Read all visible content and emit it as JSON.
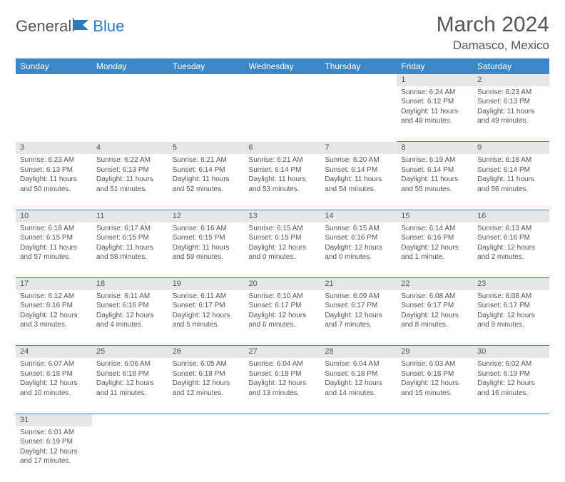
{
  "logo": {
    "word1": "General",
    "word2": "Blue"
  },
  "title": "March 2024",
  "location": "Damasco, Mexico",
  "colors": {
    "header_bg": "#3b87c8",
    "header_text": "#ffffff",
    "daynum_bg": "#e6e6e6",
    "text": "#555555",
    "rule": "#3b87c8"
  },
  "weekdays": [
    "Sunday",
    "Monday",
    "Tuesday",
    "Wednesday",
    "Thursday",
    "Friday",
    "Saturday"
  ],
  "weeks": [
    {
      "nums": [
        "",
        "",
        "",
        "",
        "",
        "1",
        "2"
      ],
      "cells": [
        {
          "sunrise": "",
          "sunset": "",
          "daylight": ""
        },
        {
          "sunrise": "",
          "sunset": "",
          "daylight": ""
        },
        {
          "sunrise": "",
          "sunset": "",
          "daylight": ""
        },
        {
          "sunrise": "",
          "sunset": "",
          "daylight": ""
        },
        {
          "sunrise": "",
          "sunset": "",
          "daylight": ""
        },
        {
          "sunrise": "Sunrise: 6:24 AM",
          "sunset": "Sunset: 6:12 PM",
          "daylight": "Daylight: 11 hours and 48 minutes."
        },
        {
          "sunrise": "Sunrise: 6:23 AM",
          "sunset": "Sunset: 6:13 PM",
          "daylight": "Daylight: 11 hours and 49 minutes."
        }
      ]
    },
    {
      "nums": [
        "3",
        "4",
        "5",
        "6",
        "7",
        "8",
        "9"
      ],
      "cells": [
        {
          "sunrise": "Sunrise: 6:23 AM",
          "sunset": "Sunset: 6:13 PM",
          "daylight": "Daylight: 11 hours and 50 minutes."
        },
        {
          "sunrise": "Sunrise: 6:22 AM",
          "sunset": "Sunset: 6:13 PM",
          "daylight": "Daylight: 11 hours and 51 minutes."
        },
        {
          "sunrise": "Sunrise: 6:21 AM",
          "sunset": "Sunset: 6:14 PM",
          "daylight": "Daylight: 11 hours and 52 minutes."
        },
        {
          "sunrise": "Sunrise: 6:21 AM",
          "sunset": "Sunset: 6:14 PM",
          "daylight": "Daylight: 11 hours and 53 minutes."
        },
        {
          "sunrise": "Sunrise: 6:20 AM",
          "sunset": "Sunset: 6:14 PM",
          "daylight": "Daylight: 11 hours and 54 minutes."
        },
        {
          "sunrise": "Sunrise: 6:19 AM",
          "sunset": "Sunset: 6:14 PM",
          "daylight": "Daylight: 11 hours and 55 minutes."
        },
        {
          "sunrise": "Sunrise: 6:18 AM",
          "sunset": "Sunset: 6:14 PM",
          "daylight": "Daylight: 11 hours and 56 minutes."
        }
      ]
    },
    {
      "nums": [
        "10",
        "11",
        "12",
        "13",
        "14",
        "15",
        "16"
      ],
      "cells": [
        {
          "sunrise": "Sunrise: 6:18 AM",
          "sunset": "Sunset: 6:15 PM",
          "daylight": "Daylight: 11 hours and 57 minutes."
        },
        {
          "sunrise": "Sunrise: 6:17 AM",
          "sunset": "Sunset: 6:15 PM",
          "daylight": "Daylight: 11 hours and 58 minutes."
        },
        {
          "sunrise": "Sunrise: 6:16 AM",
          "sunset": "Sunset: 6:15 PM",
          "daylight": "Daylight: 11 hours and 59 minutes."
        },
        {
          "sunrise": "Sunrise: 6:15 AM",
          "sunset": "Sunset: 6:15 PM",
          "daylight": "Daylight: 12 hours and 0 minutes."
        },
        {
          "sunrise": "Sunrise: 6:15 AM",
          "sunset": "Sunset: 6:16 PM",
          "daylight": "Daylight: 12 hours and 0 minutes."
        },
        {
          "sunrise": "Sunrise: 6:14 AM",
          "sunset": "Sunset: 6:16 PM",
          "daylight": "Daylight: 12 hours and 1 minute."
        },
        {
          "sunrise": "Sunrise: 6:13 AM",
          "sunset": "Sunset: 6:16 PM",
          "daylight": "Daylight: 12 hours and 2 minutes."
        }
      ]
    },
    {
      "nums": [
        "17",
        "18",
        "19",
        "20",
        "21",
        "22",
        "23"
      ],
      "cells": [
        {
          "sunrise": "Sunrise: 6:12 AM",
          "sunset": "Sunset: 6:16 PM",
          "daylight": "Daylight: 12 hours and 3 minutes."
        },
        {
          "sunrise": "Sunrise: 6:11 AM",
          "sunset": "Sunset: 6:16 PM",
          "daylight": "Daylight: 12 hours and 4 minutes."
        },
        {
          "sunrise": "Sunrise: 6:11 AM",
          "sunset": "Sunset: 6:17 PM",
          "daylight": "Daylight: 12 hours and 5 minutes."
        },
        {
          "sunrise": "Sunrise: 6:10 AM",
          "sunset": "Sunset: 6:17 PM",
          "daylight": "Daylight: 12 hours and 6 minutes."
        },
        {
          "sunrise": "Sunrise: 6:09 AM",
          "sunset": "Sunset: 6:17 PM",
          "daylight": "Daylight: 12 hours and 7 minutes."
        },
        {
          "sunrise": "Sunrise: 6:08 AM",
          "sunset": "Sunset: 6:17 PM",
          "daylight": "Daylight: 12 hours and 8 minutes."
        },
        {
          "sunrise": "Sunrise: 6:08 AM",
          "sunset": "Sunset: 6:17 PM",
          "daylight": "Daylight: 12 hours and 9 minutes."
        }
      ]
    },
    {
      "nums": [
        "24",
        "25",
        "26",
        "27",
        "28",
        "29",
        "30"
      ],
      "cells": [
        {
          "sunrise": "Sunrise: 6:07 AM",
          "sunset": "Sunset: 6:18 PM",
          "daylight": "Daylight: 12 hours and 10 minutes."
        },
        {
          "sunrise": "Sunrise: 6:06 AM",
          "sunset": "Sunset: 6:18 PM",
          "daylight": "Daylight: 12 hours and 11 minutes."
        },
        {
          "sunrise": "Sunrise: 6:05 AM",
          "sunset": "Sunset: 6:18 PM",
          "daylight": "Daylight: 12 hours and 12 minutes."
        },
        {
          "sunrise": "Sunrise: 6:04 AM",
          "sunset": "Sunset: 6:18 PM",
          "daylight": "Daylight: 12 hours and 13 minutes."
        },
        {
          "sunrise": "Sunrise: 6:04 AM",
          "sunset": "Sunset: 6:18 PM",
          "daylight": "Daylight: 12 hours and 14 minutes."
        },
        {
          "sunrise": "Sunrise: 6:03 AM",
          "sunset": "Sunset: 6:18 PM",
          "daylight": "Daylight: 12 hours and 15 minutes."
        },
        {
          "sunrise": "Sunrise: 6:02 AM",
          "sunset": "Sunset: 6:19 PM",
          "daylight": "Daylight: 12 hours and 16 minutes."
        }
      ]
    },
    {
      "nums": [
        "31",
        "",
        "",
        "",
        "",
        "",
        ""
      ],
      "cells": [
        {
          "sunrise": "Sunrise: 6:01 AM",
          "sunset": "Sunset: 6:19 PM",
          "daylight": "Daylight: 12 hours and 17 minutes."
        },
        {
          "sunrise": "",
          "sunset": "",
          "daylight": ""
        },
        {
          "sunrise": "",
          "sunset": "",
          "daylight": ""
        },
        {
          "sunrise": "",
          "sunset": "",
          "daylight": ""
        },
        {
          "sunrise": "",
          "sunset": "",
          "daylight": ""
        },
        {
          "sunrise": "",
          "sunset": "",
          "daylight": ""
        },
        {
          "sunrise": "",
          "sunset": "",
          "daylight": ""
        }
      ]
    }
  ]
}
